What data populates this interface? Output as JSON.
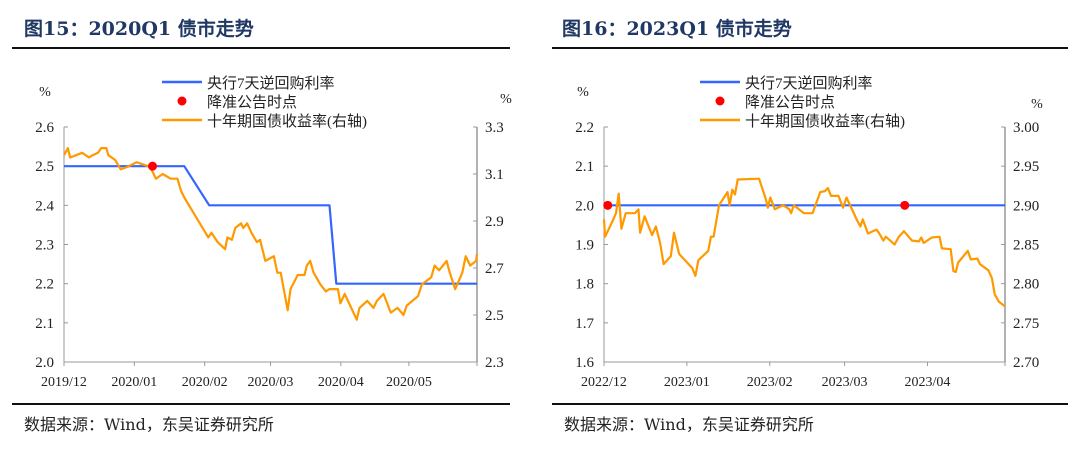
{
  "figures": [
    {
      "title": "图15：2020Q1 债市走势",
      "source": "数据来源：Wind，东吴证券研究所"
    },
    {
      "title": "图16：2023Q1 债市走势",
      "source": "数据来源：Wind，东吴证券研究所"
    }
  ],
  "colors": {
    "repo": "#3366ff",
    "rrr": "#ff0000",
    "yield": "#ff9900",
    "title": "#1f3864"
  },
  "chart_data": [
    {
      "type": "line",
      "title": "2020Q1 债市走势",
      "x_unit": "days since 2019-12-01",
      "xlim": [
        0,
        182
      ],
      "x_ticks": [
        {
          "v": 0,
          "label": "2019/12"
        },
        {
          "v": 31,
          "label": "2020/01"
        },
        {
          "v": 62,
          "label": "2020/02"
        },
        {
          "v": 91,
          "label": "2020/03"
        },
        {
          "v": 122,
          "label": "2020/04"
        },
        {
          "v": 152,
          "label": "2020/05"
        },
        {
          "v": 182,
          "label": ""
        }
      ],
      "ylabel": "%",
      "y2label": "%",
      "ylim": [
        2.0,
        2.6
      ],
      "y_ticks": [
        "2.0",
        "2.1",
        "2.2",
        "2.3",
        "2.4",
        "2.5",
        "2.6"
      ],
      "y2lim": [
        2.3,
        3.3
      ],
      "y2_ticks": [
        "2.3",
        "2.5",
        "2.7",
        "2.9",
        "3.1",
        "3.3"
      ],
      "legend": {
        "position": "top-center",
        "entries": [
          "央行7天逆回购利率",
          "降准公告时点",
          "十年期国债收益率(右轴)"
        ]
      },
      "series": [
        {
          "name": "央行7天逆回购利率",
          "axis": "left",
          "kind": "line",
          "points": [
            [
              0,
              2.5
            ],
            [
              53,
              2.5
            ],
            [
              64,
              2.4
            ],
            [
              117,
              2.4
            ],
            [
              120,
              2.2
            ],
            [
              182,
              2.2
            ]
          ]
        },
        {
          "name": "降准公告时点",
          "axis": "left",
          "kind": "dot",
          "points": [
            [
              39,
              2.5
            ]
          ]
        },
        {
          "name": "十年期国债收益率(右轴)",
          "axis": "right",
          "kind": "line",
          "points": [
            [
              0,
              3.18
            ],
            [
              1.7,
              3.21
            ],
            [
              2.7,
              3.17
            ],
            [
              8,
              3.19
            ],
            [
              11,
              3.17
            ],
            [
              12.6,
              3.18
            ],
            [
              15,
              3.19
            ],
            [
              16.4,
              3.21
            ],
            [
              18.7,
              3.21
            ],
            [
              19.5,
              3.18
            ],
            [
              22.5,
              3.16
            ],
            [
              25,
              3.12
            ],
            [
              28,
              3.13
            ],
            [
              32,
              3.15
            ],
            [
              38,
              3.13
            ],
            [
              40.5,
              3.08
            ],
            [
              43.5,
              3.1
            ],
            [
              47,
              3.08
            ],
            [
              50,
              3.08
            ],
            [
              51.5,
              3.03
            ],
            [
              53,
              3.0
            ],
            [
              58,
              2.92
            ],
            [
              63.6,
              2.83
            ],
            [
              65,
              2.85
            ],
            [
              67.7,
              2.81
            ],
            [
              71,
              2.78
            ],
            [
              72,
              2.83
            ],
            [
              74,
              2.82
            ],
            [
              75.5,
              2.87
            ],
            [
              78,
              2.89
            ],
            [
              79,
              2.87
            ],
            [
              80.7,
              2.89
            ],
            [
              82.6,
              2.85
            ],
            [
              85,
              2.81
            ],
            [
              86.4,
              2.82
            ],
            [
              88.7,
              2.73
            ],
            [
              92.5,
              2.75
            ],
            [
              94,
              2.68
            ],
            [
              95.5,
              2.68
            ],
            [
              98.6,
              2.52
            ],
            [
              99.8,
              2.61
            ],
            [
              103,
              2.67
            ],
            [
              106,
              2.67
            ],
            [
              107,
              2.71
            ],
            [
              108.5,
              2.73
            ],
            [
              110,
              2.68
            ],
            [
              113,
              2.63
            ],
            [
              115.4,
              2.6
            ],
            [
              117,
              2.61
            ],
            [
              120.7,
              2.61
            ],
            [
              121.8,
              2.55
            ],
            [
              123.7,
              2.59
            ],
            [
              129,
              2.48
            ],
            [
              130.2,
              2.53
            ],
            [
              133.6,
              2.56
            ],
            [
              136.4,
              2.53
            ],
            [
              137.9,
              2.56
            ],
            [
              140.8,
              2.59
            ],
            [
              144,
              2.51
            ],
            [
              147,
              2.53
            ],
            [
              149.6,
              2.5
            ],
            [
              151,
              2.54
            ],
            [
              156,
              2.58
            ],
            [
              157.7,
              2.63
            ],
            [
              161.8,
              2.66
            ],
            [
              163.3,
              2.71
            ],
            [
              165.3,
              2.69
            ],
            [
              168.6,
              2.73
            ],
            [
              170,
              2.68
            ],
            [
              172.4,
              2.61
            ],
            [
              175.5,
              2.68
            ],
            [
              177,
              2.75
            ],
            [
              179,
              2.71
            ],
            [
              181.6,
              2.73
            ],
            [
              182,
              2.76
            ]
          ]
        }
      ]
    },
    {
      "type": "line",
      "title": "2023Q1 债市走势",
      "x_unit": "days since 2022-12-01",
      "xlim": [
        0,
        150
      ],
      "x_ticks": [
        {
          "v": 0,
          "label": "2022/12"
        },
        {
          "v": 31,
          "label": "2023/01"
        },
        {
          "v": 62,
          "label": "2023/02"
        },
        {
          "v": 90,
          "label": "2023/03"
        },
        {
          "v": 121,
          "label": "2023/04"
        },
        {
          "v": 150,
          "label": ""
        }
      ],
      "ylabel": "%",
      "y2label": "%",
      "ylim": [
        1.6,
        2.2
      ],
      "y_ticks": [
        "1.6",
        "1.7",
        "1.8",
        "1.9",
        "2.0",
        "2.1",
        "2.2"
      ],
      "y2lim": [
        2.7,
        3.0
      ],
      "y2_ticks": [
        "2.70",
        "2.75",
        "2.80",
        "2.85",
        "2.90",
        "2.95",
        "3.00"
      ],
      "legend": {
        "position": "top-center",
        "entries": [
          "央行7天逆回购利率",
          "降准公告时点",
          "十年期国债收益率(右轴)"
        ]
      },
      "series": [
        {
          "name": "央行7天逆回购利率",
          "axis": "left",
          "kind": "line",
          "points": [
            [
              0,
              2.0
            ],
            [
              150,
              2.0
            ]
          ]
        },
        {
          "name": "降准公告时点",
          "axis": "left",
          "kind": "dot",
          "points": [
            [
              1.4,
              2.0
            ],
            [
              112.5,
              2.0
            ]
          ]
        },
        {
          "name": "十年期国债收益率(右轴)",
          "axis": "right",
          "kind": "line",
          "points": [
            [
              0,
              2.882
            ],
            [
              0.4,
              2.86
            ],
            [
              3.2,
              2.88
            ],
            [
              4.5,
              2.89
            ],
            [
              5.5,
              2.915
            ],
            [
              6.5,
              2.87
            ],
            [
              8.1,
              2.89
            ],
            [
              11.6,
              2.89
            ],
            [
              12.9,
              2.895
            ],
            [
              13.5,
              2.865
            ],
            [
              15.2,
              2.886
            ],
            [
              18,
              2.862
            ],
            [
              19.4,
              2.873
            ],
            [
              21,
              2.852
            ],
            [
              22.3,
              2.825
            ],
            [
              25,
              2.835
            ],
            [
              26.2,
              2.865
            ],
            [
              28.1,
              2.838
            ],
            [
              33,
              2.82
            ],
            [
              34.2,
              2.81
            ],
            [
              35.3,
              2.83
            ],
            [
              39,
              2.842
            ],
            [
              40,
              2.86
            ],
            [
              41,
              2.86
            ],
            [
              43,
              2.9
            ],
            [
              46.2,
              2.917
            ],
            [
              47,
              2.9
            ],
            [
              48,
              2.92
            ],
            [
              49,
              2.914
            ],
            [
              50,
              2.933
            ],
            [
              58,
              2.934
            ],
            [
              60.6,
              2.907
            ],
            [
              61.3,
              2.897
            ],
            [
              62.2,
              2.91
            ],
            [
              63.9,
              2.895
            ],
            [
              67,
              2.9
            ],
            [
              68.4,
              2.897
            ],
            [
              69.3,
              2.895
            ],
            [
              70,
              2.89
            ],
            [
              71,
              2.9
            ],
            [
              74.8,
              2.89
            ],
            [
              78,
              2.89
            ],
            [
              80.9,
              2.917
            ],
            [
              82.6,
              2.918
            ],
            [
              83.8,
              2.922
            ],
            [
              84.9,
              2.912
            ],
            [
              87.7,
              2.912
            ],
            [
              89.4,
              2.897
            ],
            [
              90.7,
              2.91
            ],
            [
              94.8,
              2.88
            ],
            [
              95.9,
              2.873
            ],
            [
              96.8,
              2.882
            ],
            [
              98.7,
              2.864
            ],
            [
              101.9,
              2.869
            ],
            [
              102.8,
              2.865
            ],
            [
              104.5,
              2.855
            ],
            [
              105.4,
              2.86
            ],
            [
              108.7,
              2.85
            ],
            [
              110.3,
              2.86
            ],
            [
              112.2,
              2.867
            ],
            [
              115.2,
              2.855
            ],
            [
              117.8,
              2.854
            ],
            [
              118.7,
              2.859
            ],
            [
              119.6,
              2.852
            ],
            [
              122.6,
              2.859
            ],
            [
              125.5,
              2.86
            ],
            [
              126.4,
              2.845
            ],
            [
              129.7,
              2.844
            ],
            [
              130.7,
              2.816
            ],
            [
              131.6,
              2.815
            ],
            [
              132.5,
              2.827
            ],
            [
              136.1,
              2.842
            ],
            [
              137.2,
              2.831
            ],
            [
              139.7,
              2.832
            ],
            [
              140.6,
              2.825
            ],
            [
              143.8,
              2.817
            ],
            [
              145.1,
              2.807
            ],
            [
              146.2,
              2.786
            ],
            [
              147.7,
              2.777
            ],
            [
              150,
              2.771
            ]
          ]
        }
      ]
    }
  ]
}
